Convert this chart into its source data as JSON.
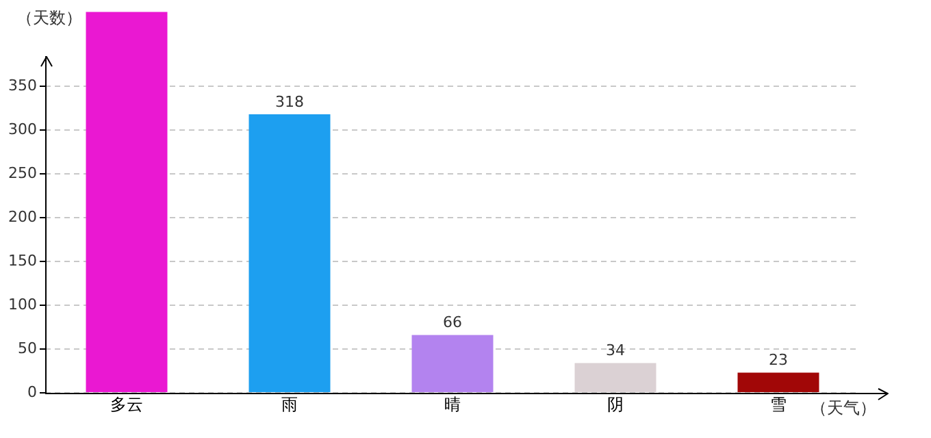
{
  "chart_data": {
    "type": "bar",
    "xlabel": "（天气）",
    "ylabel": "（天数）",
    "categories": [
      "多云",
      "雨",
      "晴",
      "阴",
      "雪"
    ],
    "values": [
      435,
      318,
      66,
      34,
      23
    ],
    "colors": [
      "#ea18d2",
      "#1d9ff0",
      "#b383ef",
      "#dbd1d4",
      "#a10707"
    ],
    "value_labels": [
      null,
      "318",
      "66",
      "34",
      "23"
    ],
    "ylim": [
      0,
      435
    ],
    "yticks": [
      0,
      50,
      100,
      150,
      200,
      250,
      300,
      350
    ],
    "grid": "y",
    "legend": false
  }
}
